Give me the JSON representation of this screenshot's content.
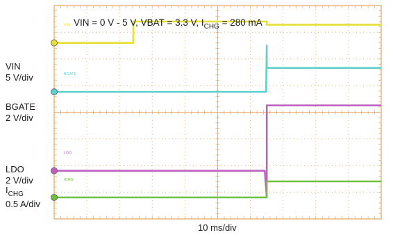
{
  "chart_data": {
    "type": "line",
    "title_prefix": "VIN = 0 V - 5 V, VBAT = 3.3 V, I",
    "title_sub": "CHG",
    "title_suffix": " = 280 mA",
    "xlabel": "10 ms/div",
    "grid": true,
    "x_divisions": 10,
    "y_divisions": 8,
    "x_unit": "div",
    "xlim": [
      0,
      10
    ],
    "ylim": [
      0,
      8
    ],
    "channels": [
      {
        "name": "VIN",
        "scale": "5 V/div",
        "color": "#e8e030",
        "trace_tag": "VIN",
        "ref_level_div": 5.8,
        "points": [
          [
            0,
            5.8
          ],
          [
            2.42,
            5.8
          ],
          [
            2.42,
            6.6
          ],
          [
            6.5,
            6.6
          ],
          [
            6.5,
            6.48
          ],
          [
            10,
            6.48
          ]
        ]
      },
      {
        "name": "BGATE",
        "scale": "2 V/div",
        "color": "#5fd0d0",
        "trace_tag": "BGATE",
        "ref_level_div": 3.96,
        "points": [
          [
            0,
            3.96
          ],
          [
            6.48,
            3.96
          ],
          [
            6.5,
            5.7
          ],
          [
            6.5,
            4.86
          ],
          [
            10,
            4.86
          ]
        ]
      },
      {
        "name": "LDO",
        "scale": "2 V/div",
        "color": "#c060c0",
        "trace_tag": "LDO",
        "ref_level_div": 1.0,
        "points": [
          [
            0,
            1.0
          ],
          [
            6.44,
            1.0
          ],
          [
            6.5,
            0.0
          ],
          [
            6.5,
            3.45
          ],
          [
            10,
            3.45
          ]
        ]
      },
      {
        "name_main": "I",
        "name_sub": "CHG",
        "scale": "0.5 A/div",
        "color": "#70c040",
        "trace_tag": "ICHG",
        "ref_level_div": 0.0,
        "points": [
          [
            0,
            0.0
          ],
          [
            6.5,
            0.0
          ],
          [
            6.5,
            0.6
          ],
          [
            10,
            0.6
          ]
        ]
      }
    ]
  }
}
